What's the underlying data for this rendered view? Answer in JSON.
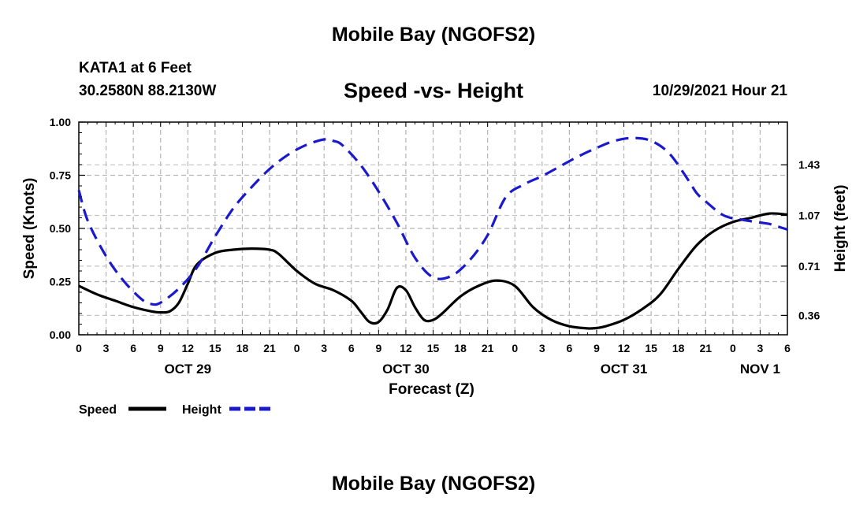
{
  "header": {
    "title": "Mobile Bay (NGOFS2)",
    "station": "KATA1 at 6 Feet",
    "coords": "30.2580N  88.2130W",
    "subtitle": "Speed -vs- Height",
    "timestamp": "10/29/2021 Hour 21",
    "footer_title": "Mobile Bay (NGOFS2)"
  },
  "chart_data": {
    "type": "line",
    "title": "Speed -vs- Height",
    "xlabel": "Forecast (Z)",
    "ylabel": "Speed (Knots)",
    "y2label": "Height (feet)",
    "xlim": [
      0,
      78
    ],
    "ylim": [
      0,
      1
    ],
    "y2lim": [
      0.2223,
      1.7333
    ],
    "x_tick_labels": [
      "0",
      "3",
      "6",
      "9",
      "12",
      "15",
      "18",
      "21",
      "0",
      "3",
      "6",
      "9",
      "12",
      "15",
      "18",
      "21",
      "0",
      "3",
      "6",
      "9",
      "12",
      "15",
      "18",
      "21",
      "0",
      "3",
      "6"
    ],
    "y_ticks": [
      0.0,
      0.25,
      0.5,
      0.75,
      1.0
    ],
    "y_tick_labels": [
      "0.00",
      "0.25",
      "0.50",
      "0.75",
      "1.00"
    ],
    "y2_ticks": [
      0.36,
      0.71,
      1.07,
      1.43
    ],
    "y2_tick_labels": [
      "0.36",
      "0.71",
      "1.07",
      "1.43"
    ],
    "date_labels": [
      {
        "label": "OCT 29",
        "x": 12
      },
      {
        "label": "OCT 30",
        "x": 36
      },
      {
        "label": "OCT 31",
        "x": 60
      },
      {
        "label": "NOV 1",
        "x": 75
      }
    ],
    "series": [
      {
        "name": "Speed",
        "axis": "left",
        "color": "#000000",
        "dash": "solid",
        "x": [
          0,
          2,
          4,
          6,
          8,
          9,
          10,
          11,
          12,
          13,
          15,
          17,
          19,
          21,
          22,
          24,
          26,
          28,
          30,
          31,
          32,
          33,
          34,
          35,
          36,
          37,
          38,
          39,
          40,
          42,
          44,
          46,
          48,
          50,
          52,
          54,
          56,
          57,
          58,
          60,
          62,
          64,
          66,
          68,
          70,
          72,
          74,
          76,
          78
        ],
        "y": [
          0.23,
          0.19,
          0.16,
          0.13,
          0.11,
          0.105,
          0.11,
          0.15,
          0.24,
          0.33,
          0.385,
          0.4,
          0.405,
          0.4,
          0.38,
          0.3,
          0.24,
          0.21,
          0.16,
          0.11,
          0.06,
          0.06,
          0.12,
          0.22,
          0.21,
          0.13,
          0.07,
          0.07,
          0.1,
          0.18,
          0.23,
          0.255,
          0.23,
          0.13,
          0.07,
          0.04,
          0.03,
          0.032,
          0.04,
          0.07,
          0.12,
          0.19,
          0.31,
          0.42,
          0.49,
          0.53,
          0.55,
          0.57,
          0.565
        ]
      },
      {
        "name": "Height",
        "axis": "right",
        "color": "#1a1acc",
        "dash": "dashed",
        "x": [
          0,
          1,
          3,
          5,
          7,
          8,
          9,
          11,
          13,
          15,
          17,
          19,
          21,
          23,
          25,
          27,
          28,
          29,
          31,
          33,
          35,
          37,
          39,
          41,
          43,
          45,
          47,
          49,
          51,
          53,
          55,
          57,
          59,
          61,
          63,
          65,
          67,
          68,
          69,
          71,
          73,
          75,
          76,
          77,
          78
        ],
        "y": [
          1.25,
          1.03,
          0.78,
          0.6,
          0.47,
          0.44,
          0.45,
          0.55,
          0.7,
          0.92,
          1.12,
          1.27,
          1.4,
          1.5,
          1.57,
          1.61,
          1.6,
          1.57,
          1.43,
          1.24,
          1.02,
          0.77,
          0.63,
          0.64,
          0.75,
          0.93,
          1.2,
          1.29,
          1.35,
          1.42,
          1.49,
          1.55,
          1.6,
          1.62,
          1.6,
          1.51,
          1.33,
          1.23,
          1.17,
          1.07,
          1.04,
          1.02,
          1.01,
          0.99,
          0.97
        ]
      }
    ],
    "legend": [
      {
        "label": "Speed",
        "color": "#000000",
        "dash": "solid"
      },
      {
        "label": "Height",
        "color": "#1a1acc",
        "dash": "dashed"
      }
    ],
    "grid": true
  }
}
